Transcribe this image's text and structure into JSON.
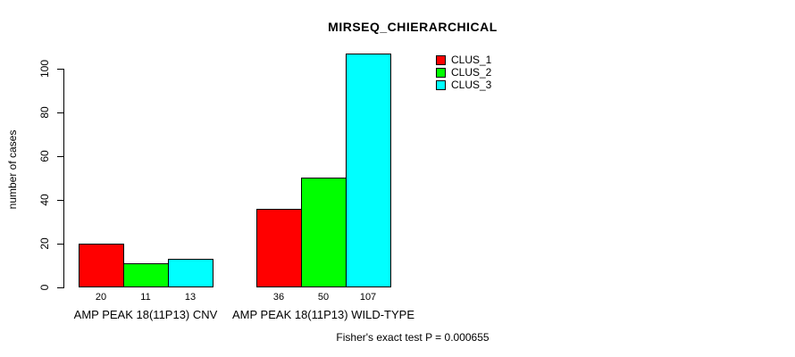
{
  "chart_data": {
    "type": "bar",
    "title": "MIRSEQ_CHIERARCHICAL",
    "ylabel": "number of cases",
    "xlabel": "",
    "ylim": [
      0,
      100
    ],
    "yticks": [
      0,
      20,
      40,
      60,
      80,
      100
    ],
    "categories": [
      "AMP PEAK 18(11P13) CNV",
      "AMP PEAK 18(11P13) WILD-TYPE"
    ],
    "series": [
      {
        "name": "CLUS_1",
        "color": "#ff0000",
        "values": [
          20,
          36
        ]
      },
      {
        "name": "CLUS_2",
        "color": "#00ff00",
        "values": [
          11,
          50
        ]
      },
      {
        "name": "CLUS_3",
        "color": "#00ffff",
        "values": [
          13,
          107
        ]
      }
    ],
    "bar_labels": [
      [
        20,
        11,
        13
      ],
      [
        36,
        50,
        107
      ]
    ],
    "legend_position": "top-right",
    "grid": false,
    "caption": "Fisher's exact test P = 0.000655"
  }
}
